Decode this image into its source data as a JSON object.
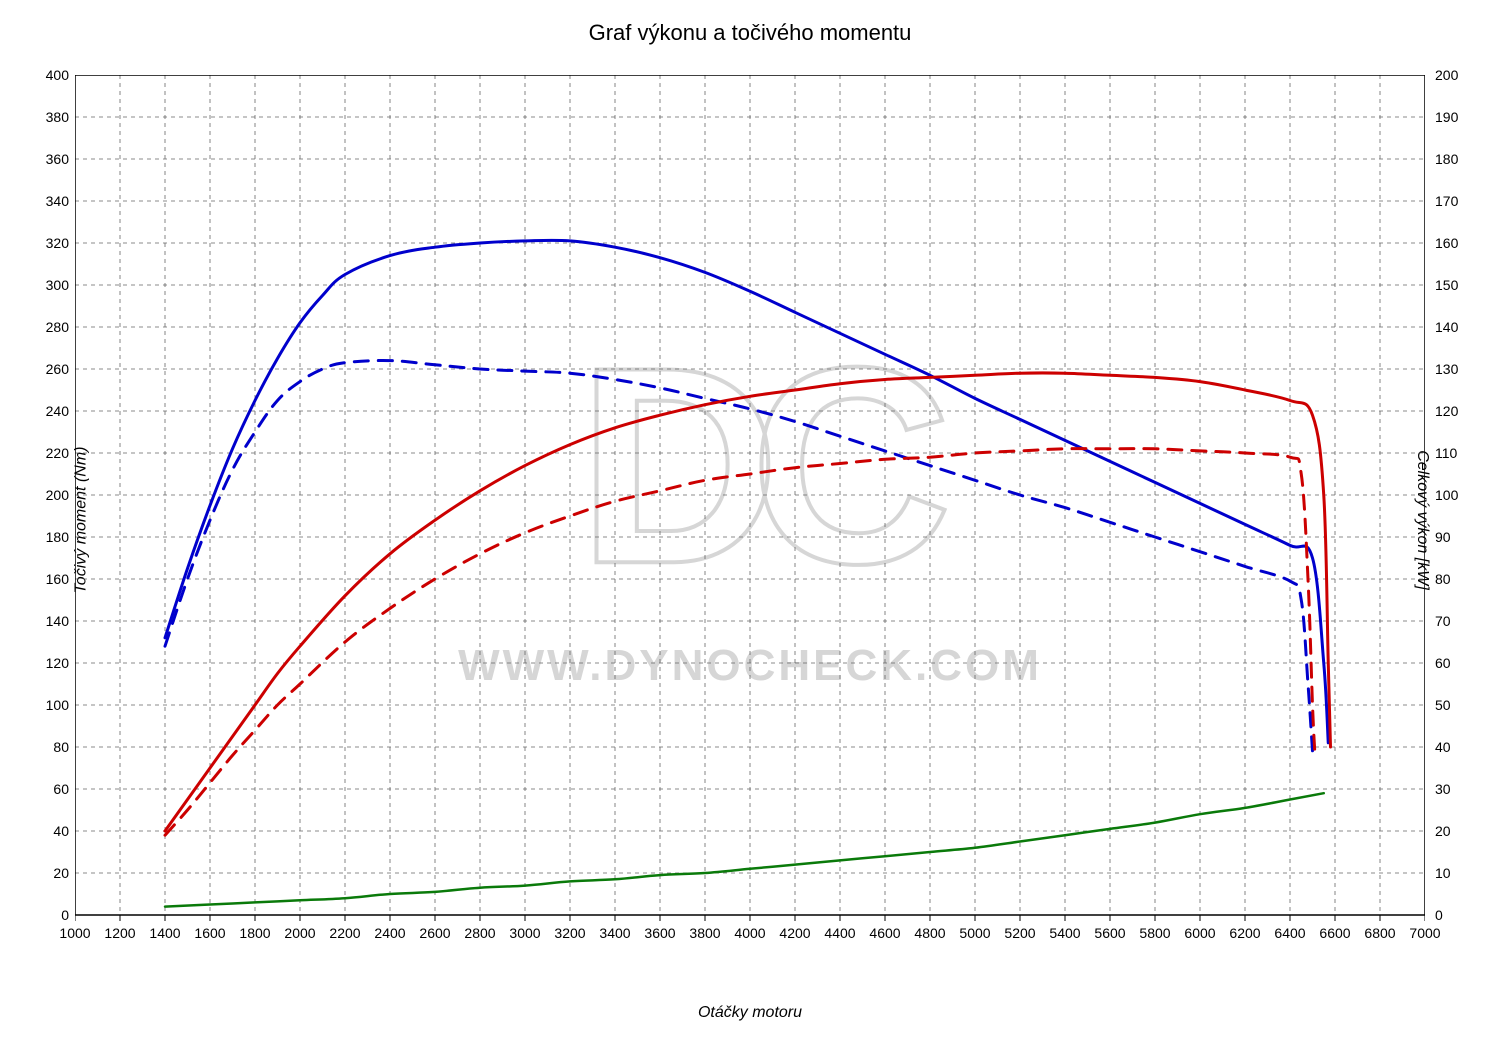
{
  "chart": {
    "type": "line",
    "title": "Graf výkonu a točivého momentu",
    "title_fontsize": 22,
    "background_color": "#ffffff",
    "grid_color": "#666666",
    "grid_dash": "4 4",
    "border_color": "#000000",
    "watermark": {
      "big_text": "DC",
      "url_text": "WWW.DYNOCHECK.COM",
      "color": "#d6d6d6"
    },
    "x_axis": {
      "label": "Otáčky motoru",
      "min": 1000,
      "max": 7000,
      "tick_step": 200,
      "label_fontsize": 16,
      "tick_fontsize": 14
    },
    "y_left": {
      "label": "Točivý moment (Nm)",
      "min": 0,
      "max": 400,
      "tick_step": 20,
      "label_fontsize": 16,
      "tick_fontsize": 14
    },
    "y_right": {
      "label": "Celkový výkon [kW]",
      "min": 0,
      "max": 200,
      "tick_step": 10,
      "label_fontsize": 16,
      "tick_fontsize": 14
    },
    "series": [
      {
        "name": "torque_solid_blue",
        "axis": "left",
        "color": "#0000cc",
        "line_width": 3,
        "dash": null,
        "points": [
          [
            1400,
            132
          ],
          [
            1500,
            165
          ],
          [
            1600,
            195
          ],
          [
            1700,
            222
          ],
          [
            1800,
            245
          ],
          [
            1900,
            265
          ],
          [
            2000,
            282
          ],
          [
            2100,
            295
          ],
          [
            2200,
            305
          ],
          [
            2400,
            314
          ],
          [
            2600,
            318
          ],
          [
            2800,
            320
          ],
          [
            3000,
            321
          ],
          [
            3200,
            321
          ],
          [
            3400,
            318
          ],
          [
            3600,
            313
          ],
          [
            3800,
            306
          ],
          [
            4000,
            297
          ],
          [
            4200,
            287
          ],
          [
            4400,
            277
          ],
          [
            4600,
            267
          ],
          [
            4800,
            257
          ],
          [
            5000,
            246
          ],
          [
            5200,
            236
          ],
          [
            5400,
            226
          ],
          [
            5600,
            216
          ],
          [
            5800,
            206
          ],
          [
            6000,
            196
          ],
          [
            6200,
            186
          ],
          [
            6400,
            176
          ],
          [
            6500,
            170
          ],
          [
            6550,
            120
          ],
          [
            6570,
            82
          ]
        ]
      },
      {
        "name": "torque_dashed_blue",
        "axis": "left",
        "color": "#0000cc",
        "line_width": 3,
        "dash": "14 10",
        "points": [
          [
            1400,
            128
          ],
          [
            1500,
            160
          ],
          [
            1600,
            188
          ],
          [
            1700,
            212
          ],
          [
            1800,
            230
          ],
          [
            1900,
            245
          ],
          [
            2000,
            254
          ],
          [
            2100,
            260
          ],
          [
            2200,
            263
          ],
          [
            2400,
            264
          ],
          [
            2600,
            262
          ],
          [
            2800,
            260
          ],
          [
            3000,
            259
          ],
          [
            3200,
            258
          ],
          [
            3400,
            255
          ],
          [
            3600,
            251
          ],
          [
            3800,
            246
          ],
          [
            4000,
            241
          ],
          [
            4200,
            235
          ],
          [
            4400,
            228
          ],
          [
            4600,
            221
          ],
          [
            4800,
            214
          ],
          [
            5000,
            207
          ],
          [
            5200,
            200
          ],
          [
            5400,
            194
          ],
          [
            5600,
            187
          ],
          [
            5800,
            180
          ],
          [
            6000,
            173
          ],
          [
            6200,
            166
          ],
          [
            6400,
            159
          ],
          [
            6450,
            150
          ],
          [
            6480,
            110
          ],
          [
            6500,
            78
          ]
        ]
      },
      {
        "name": "power_solid_red",
        "axis": "left",
        "color": "#cc0000",
        "line_width": 3,
        "dash": null,
        "points": [
          [
            1400,
            40
          ],
          [
            1500,
            55
          ],
          [
            1600,
            70
          ],
          [
            1700,
            85
          ],
          [
            1800,
            100
          ],
          [
            1900,
            115
          ],
          [
            2000,
            128
          ],
          [
            2200,
            152
          ],
          [
            2400,
            172
          ],
          [
            2600,
            188
          ],
          [
            2800,
            202
          ],
          [
            3000,
            214
          ],
          [
            3200,
            224
          ],
          [
            3400,
            232
          ],
          [
            3600,
            238
          ],
          [
            3800,
            243
          ],
          [
            4000,
            247
          ],
          [
            4200,
            250
          ],
          [
            4400,
            253
          ],
          [
            4600,
            255
          ],
          [
            4800,
            256
          ],
          [
            5000,
            257
          ],
          [
            5200,
            258
          ],
          [
            5400,
            258
          ],
          [
            5600,
            257
          ],
          [
            5800,
            256
          ],
          [
            6000,
            254
          ],
          [
            6200,
            250
          ],
          [
            6400,
            245
          ],
          [
            6500,
            238
          ],
          [
            6550,
            200
          ],
          [
            6570,
            120
          ],
          [
            6580,
            80
          ]
        ]
      },
      {
        "name": "power_dashed_red",
        "axis": "left",
        "color": "#cc0000",
        "line_width": 3,
        "dash": "14 10",
        "points": [
          [
            1400,
            38
          ],
          [
            1500,
            50
          ],
          [
            1600,
            63
          ],
          [
            1700,
            76
          ],
          [
            1800,
            88
          ],
          [
            1900,
            100
          ],
          [
            2000,
            110
          ],
          [
            2200,
            130
          ],
          [
            2400,
            146
          ],
          [
            2600,
            160
          ],
          [
            2800,
            172
          ],
          [
            3000,
            182
          ],
          [
            3200,
            190
          ],
          [
            3400,
            197
          ],
          [
            3600,
            202
          ],
          [
            3800,
            207
          ],
          [
            4000,
            210
          ],
          [
            4200,
            213
          ],
          [
            4400,
            215
          ],
          [
            4600,
            217
          ],
          [
            4800,
            218
          ],
          [
            5000,
            220
          ],
          [
            5200,
            221
          ],
          [
            5400,
            222
          ],
          [
            5600,
            222
          ],
          [
            5800,
            222
          ],
          [
            6000,
            221
          ],
          [
            6200,
            220
          ],
          [
            6400,
            218
          ],
          [
            6450,
            210
          ],
          [
            6480,
            160
          ],
          [
            6500,
            100
          ],
          [
            6510,
            78
          ]
        ]
      },
      {
        "name": "losses_green",
        "axis": "left",
        "color": "#0a7a0a",
        "line_width": 2.5,
        "dash": null,
        "points": [
          [
            1400,
            4
          ],
          [
            1600,
            5
          ],
          [
            1800,
            6
          ],
          [
            2000,
            7
          ],
          [
            2200,
            8
          ],
          [
            2400,
            10
          ],
          [
            2600,
            11
          ],
          [
            2800,
            13
          ],
          [
            3000,
            14
          ],
          [
            3200,
            16
          ],
          [
            3400,
            17
          ],
          [
            3600,
            19
          ],
          [
            3800,
            20
          ],
          [
            4000,
            22
          ],
          [
            4200,
            24
          ],
          [
            4400,
            26
          ],
          [
            4600,
            28
          ],
          [
            4800,
            30
          ],
          [
            5000,
            32
          ],
          [
            5200,
            35
          ],
          [
            5400,
            38
          ],
          [
            5600,
            41
          ],
          [
            5800,
            44
          ],
          [
            6000,
            48
          ],
          [
            6200,
            51
          ],
          [
            6400,
            55
          ],
          [
            6550,
            58
          ]
        ]
      }
    ]
  }
}
